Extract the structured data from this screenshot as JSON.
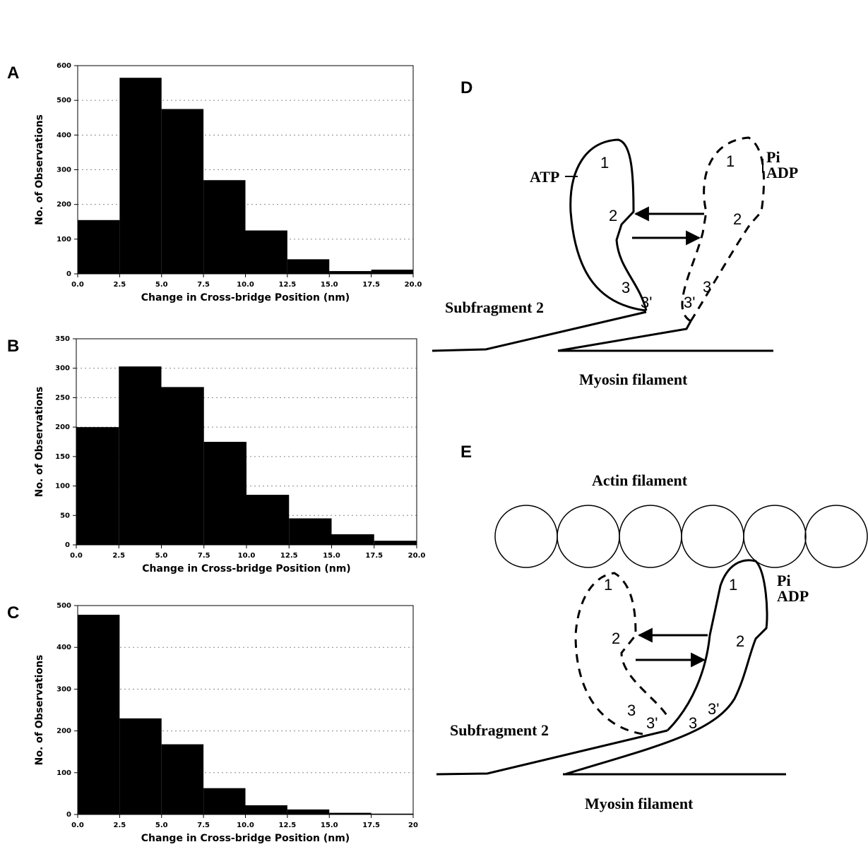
{
  "chart_data": [
    {
      "type": "histogram",
      "panel": "A",
      "xlabel": "Change in Cross-bridge Position (nm)",
      "ylabel": "No. of Observations",
      "bins": [
        0,
        2.5,
        5,
        7.5,
        10,
        12.5,
        15,
        17.5,
        20
      ],
      "values": [
        155,
        565,
        475,
        270,
        125,
        42,
        8,
        12
      ],
      "color": "#000000",
      "xlim": [
        0,
        20
      ],
      "ylim": [
        0,
        600
      ],
      "yticks": [
        0,
        100,
        200,
        300,
        400,
        500,
        600
      ],
      "grid": true,
      "xticks": [
        {
          "value": 0,
          "label": "0.0"
        },
        2.5,
        {
          "value": 5,
          "label": "5.0"
        },
        7.5,
        {
          "value": 10,
          "label": "10.0"
        },
        12.5,
        {
          "value": 15,
          "label": "15.0"
        },
        17.5,
        {
          "value": 20,
          "label": "20.0"
        }
      ]
    },
    {
      "type": "histogram",
      "panel": "B",
      "xlabel": "Change in Cross-bridge Position (nm)",
      "ylabel": "No. of Observations",
      "bins": [
        0,
        2.5,
        5,
        7.5,
        10,
        12.5,
        15,
        17.5,
        20
      ],
      "values": [
        200,
        303,
        268,
        175,
        85,
        45,
        18,
        7
      ],
      "color": "#000000",
      "xlim": [
        0,
        20
      ],
      "ylim": [
        0,
        350
      ],
      "yticks": [
        0,
        50,
        100,
        150,
        200,
        250,
        300,
        350
      ],
      "grid": true,
      "xticks": [
        {
          "value": 0,
          "label": "0.0"
        },
        2.5,
        {
          "value": 5,
          "label": "5.0"
        },
        7.5,
        {
          "value": 10,
          "label": "10.0"
        },
        12.5,
        {
          "value": 15,
          "label": "15.0"
        },
        17.5,
        {
          "value": 20,
          "label": "20.0"
        }
      ]
    },
    {
      "type": "histogram",
      "panel": "C",
      "xlabel": "Change in Cross-bridge Position (nm)",
      "ylabel": "No. of Observations",
      "bins": [
        0,
        2.5,
        5,
        7.5,
        10,
        12.5,
        15,
        17.5,
        20
      ],
      "values": [
        478,
        230,
        168,
        63,
        22,
        12,
        4,
        2
      ],
      "color": "#000000",
      "xlim": [
        0,
        20
      ],
      "ylim": [
        0,
        500
      ],
      "yticks": [
        0,
        100,
        200,
        300,
        400,
        500
      ],
      "grid": true,
      "xticks": [
        {
          "value": 0,
          "label": "0.0"
        },
        2.5,
        {
          "value": 5,
          "label": "5.0"
        },
        7.5,
        {
          "value": 10,
          "label": "10.0"
        },
        12.5,
        {
          "value": 15,
          "label": "15.0"
        },
        17.5,
        20
      ]
    }
  ],
  "diagrams": [
    {
      "panel": "D",
      "labels": [
        "ATP",
        "Pi",
        "ADP",
        "1",
        "2",
        "3",
        "3'",
        "1",
        "2",
        "3'",
        "3",
        "Subfragment 2",
        "Myosin filament"
      ]
    },
    {
      "panel": "E",
      "title": "Actin filament",
      "labels": [
        "Pi",
        "ADP",
        "1",
        "2",
        "3",
        "3'",
        "1",
        "2",
        "3'",
        "3",
        "Subfragment 2",
        "Myosin filament"
      ]
    }
  ]
}
